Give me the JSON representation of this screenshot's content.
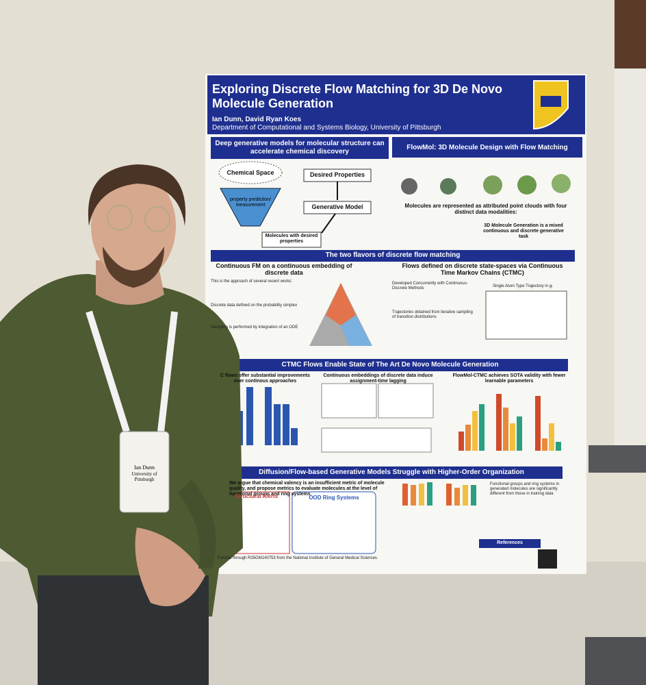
{
  "poster": {
    "title": "Exploring Discrete Flow Matching for 3D De Novo Molecule Generation",
    "authors": "Ian Dunn, David Ryan Koes",
    "affiliation": "Department of Computational and Systems Biology, University of Pittsburgh",
    "intro": {
      "heading": "Deep generative models for molecular structure can accelerate chemical discovery",
      "chemical_space": "Chemical Space",
      "prediction": "property prediction/ measurement",
      "desired": "Desired Properties",
      "model": "Generative Model",
      "molecules": "Molecules with desired properties"
    },
    "flowmol": {
      "heading": "FlowMol: 3D Molecule Design with Flow Matching",
      "representation": "Molecules are represented as attributed point clouds with four distinct data modalities:",
      "task": "3D Molecule Generation is a mixed continuous and discrete generative task"
    },
    "flavors": {
      "heading": "The two flavors of discrete flow matching",
      "continuous_title": "Continuous FM on a continuous embedding of discrete data",
      "approach": "This is the approach of several recent works:",
      "simplex": "Discrete data defined on the probability simplex",
      "sampling": "Sampling is performed by integration of an ODE",
      "ctmc_title": "Flows defined on discrete state-spaces via Continuous Time Markov Chains (CTMC)",
      "concurrent": "Developed Concurrently with Continuous-Discrete Methods",
      "trajectories": "Trajectories obtained from iterative sampling of transition distributions",
      "trajectory_plot": "Single Atom Type Trajectory in gₜ"
    },
    "ctmc": {
      "heading": "CTMC Flows Enable State of The Art De Novo Molecule Generation",
      "col1": "C flows offer substantial improvements over continous approaches",
      "col2": "Continuous embeddings of discrete data induce assignment-time lagging",
      "col3": "FlowMol-CTMC achieves SOTA validity with fewer learnable parameters"
    },
    "organization": {
      "heading": "Diffusion/Flow-based Generative Models Struggle with Higher-Order Organization",
      "argument": "We argue that chemical valency is an insufficient metric of molecule quality, and propose metrics to evaluate molecules at the level of functional groups and ring systems",
      "alerts": "Structural Alerts",
      "ood": "OOD Ring Systems",
      "finding": "Functional groups and ring systems in generated molecules are significantly different from those in training data"
    },
    "references": "References",
    "funding": "Funded through R35GM140753 from the National Institute of General Medical Sciences."
  },
  "badge": {
    "name": "Ian Dunn",
    "affiliation": "University of Pittsburgh"
  }
}
